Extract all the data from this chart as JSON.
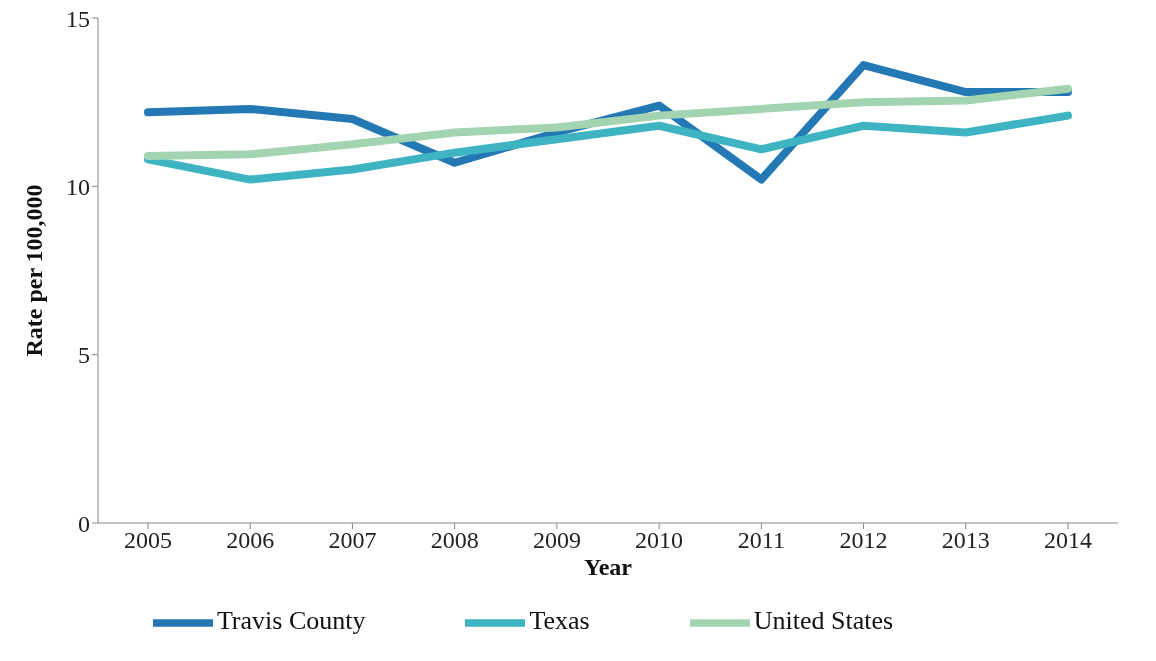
{
  "chart_data": {
    "type": "line",
    "xlabel": "Year",
    "ylabel": "Rate per 100,000",
    "categories": [
      "2005",
      "2006",
      "2007",
      "2008",
      "2009",
      "2010",
      "2011",
      "2012",
      "2013",
      "2014"
    ],
    "series": [
      {
        "name": "Travis County",
        "color": "#2479b5",
        "values": [
          12.2,
          12.3,
          12.0,
          10.7,
          11.6,
          12.4,
          10.2,
          13.6,
          12.8,
          12.8
        ]
      },
      {
        "name": "Texas",
        "color": "#3eb4c2",
        "values": [
          10.8,
          10.2,
          10.5,
          11.0,
          11.4,
          11.8,
          11.1,
          11.8,
          11.6,
          12.1
        ]
      },
      {
        "name": "United States",
        "color": "#a3d4b1",
        "values": [
          10.9,
          10.95,
          11.25,
          11.6,
          11.75,
          12.1,
          12.3,
          12.5,
          12.55,
          12.9
        ]
      }
    ],
    "ylim": [
      0,
      15
    ],
    "yticks": [
      0,
      5,
      10,
      15
    ],
    "grid": false,
    "legend": "bottom",
    "marker": "none",
    "line_style": "solid"
  }
}
